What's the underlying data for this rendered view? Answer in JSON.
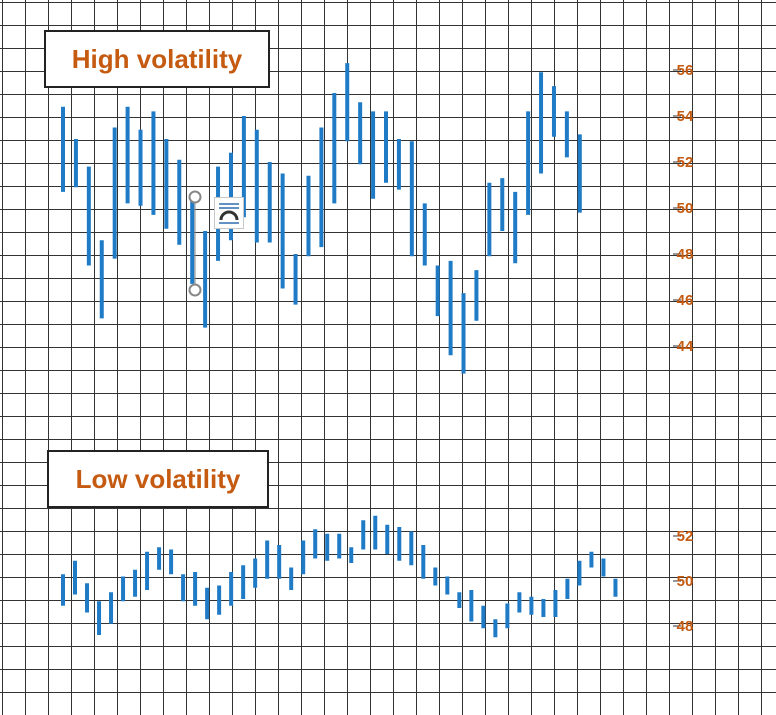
{
  "colors": {
    "bar": "#1f7bc6",
    "label": "#c55a11",
    "grid": "#333333",
    "background": "#ffffff"
  },
  "icons": {
    "layout_options": "chart-layout-options-icon",
    "selection_handle": "selection-handle"
  },
  "chart_data": [
    {
      "type": "bar",
      "subtype": "high-low range bars",
      "title": "High volatility",
      "ylim": [
        41,
        58.5
      ],
      "yticks": [
        44,
        46,
        48,
        50,
        52,
        54,
        56
      ],
      "grid": true,
      "ylabel": "",
      "xlabel": "",
      "series": [
        {
          "ranges": [
            [
              50.7,
              54.4
            ],
            [
              50.9,
              53.0
            ],
            [
              47.5,
              51.8
            ],
            [
              45.2,
              48.6
            ],
            [
              47.8,
              53.5
            ],
            [
              50.2,
              54.4
            ],
            [
              50.1,
              53.4
            ],
            [
              49.7,
              54.2
            ],
            [
              49.1,
              53.0
            ],
            [
              48.4,
              52.1
            ],
            [
              46.7,
              50.6
            ],
            [
              44.8,
              49.0
            ],
            [
              47.7,
              51.8
            ],
            [
              48.6,
              52.4
            ],
            [
              49.6,
              54.0
            ],
            [
              48.5,
              53.4
            ],
            [
              48.5,
              52.0
            ],
            [
              46.5,
              51.5
            ],
            [
              45.8,
              48.0
            ],
            [
              47.9,
              51.4
            ],
            [
              48.3,
              53.5
            ],
            [
              50.2,
              55.0
            ],
            [
              52.9,
              56.3
            ],
            [
              51.9,
              54.6
            ],
            [
              50.4,
              54.2
            ],
            [
              51.1,
              54.2
            ],
            [
              50.8,
              53.0
            ],
            [
              47.9,
              52.9
            ],
            [
              47.5,
              50.2
            ],
            [
              45.3,
              47.5
            ],
            [
              43.6,
              47.7
            ],
            [
              42.8,
              46.3
            ],
            [
              45.1,
              47.3
            ],
            [
              47.9,
              51.1
            ],
            [
              49.0,
              51.3
            ],
            [
              47.6,
              50.7
            ],
            [
              49.7,
              54.2
            ],
            [
              51.5,
              55.9
            ],
            [
              53.1,
              55.3
            ],
            [
              52.2,
              54.2
            ],
            [
              49.8,
              53.2
            ]
          ]
        }
      ]
    },
    {
      "type": "bar",
      "subtype": "high-low range bars",
      "title": "Low volatility",
      "ylim": [
        43.5,
        54.2
      ],
      "yticks": [
        48,
        50,
        52
      ],
      "grid": true,
      "ylabel": "",
      "xlabel": "",
      "series": [
        {
          "ranges": [
            [
              48.9,
              50.3
            ],
            [
              49.4,
              50.9
            ],
            [
              48.6,
              49.9
            ],
            [
              47.6,
              49.1
            ],
            [
              48.1,
              49.5
            ],
            [
              49.1,
              50.2
            ],
            [
              49.3,
              50.5
            ],
            [
              49.6,
              51.3
            ],
            [
              50.5,
              51.5
            ],
            [
              50.3,
              51.4
            ],
            [
              49.1,
              50.3
            ],
            [
              48.9,
              50.4
            ],
            [
              48.3,
              49.7
            ],
            [
              48.5,
              49.8
            ],
            [
              48.9,
              50.4
            ],
            [
              49.2,
              50.7
            ],
            [
              49.7,
              51.0
            ],
            [
              50.1,
              51.8
            ],
            [
              50.1,
              51.6
            ],
            [
              49.6,
              50.6
            ],
            [
              50.3,
              51.8
            ],
            [
              51.0,
              52.3
            ],
            [
              50.9,
              52.1
            ],
            [
              51.0,
              52.1
            ],
            [
              50.8,
              51.5
            ],
            [
              51.4,
              52.7
            ],
            [
              51.4,
              52.9
            ],
            [
              51.2,
              52.5
            ],
            [
              50.9,
              52.4
            ],
            [
              50.7,
              52.2
            ],
            [
              50.1,
              51.6
            ],
            [
              49.8,
              50.6
            ],
            [
              49.4,
              50.2
            ],
            [
              48.8,
              49.5
            ],
            [
              48.2,
              49.6
            ],
            [
              47.9,
              48.9
            ],
            [
              47.5,
              48.3
            ],
            [
              47.9,
              49.0
            ],
            [
              48.6,
              49.5
            ],
            [
              48.5,
              49.3
            ],
            [
              48.4,
              49.2
            ],
            [
              48.4,
              49.6
            ],
            [
              49.2,
              50.1
            ],
            [
              49.8,
              50.9
            ],
            [
              50.6,
              51.3
            ],
            [
              50.2,
              51.0
            ],
            [
              49.3,
              50.1
            ]
          ]
        }
      ]
    }
  ]
}
